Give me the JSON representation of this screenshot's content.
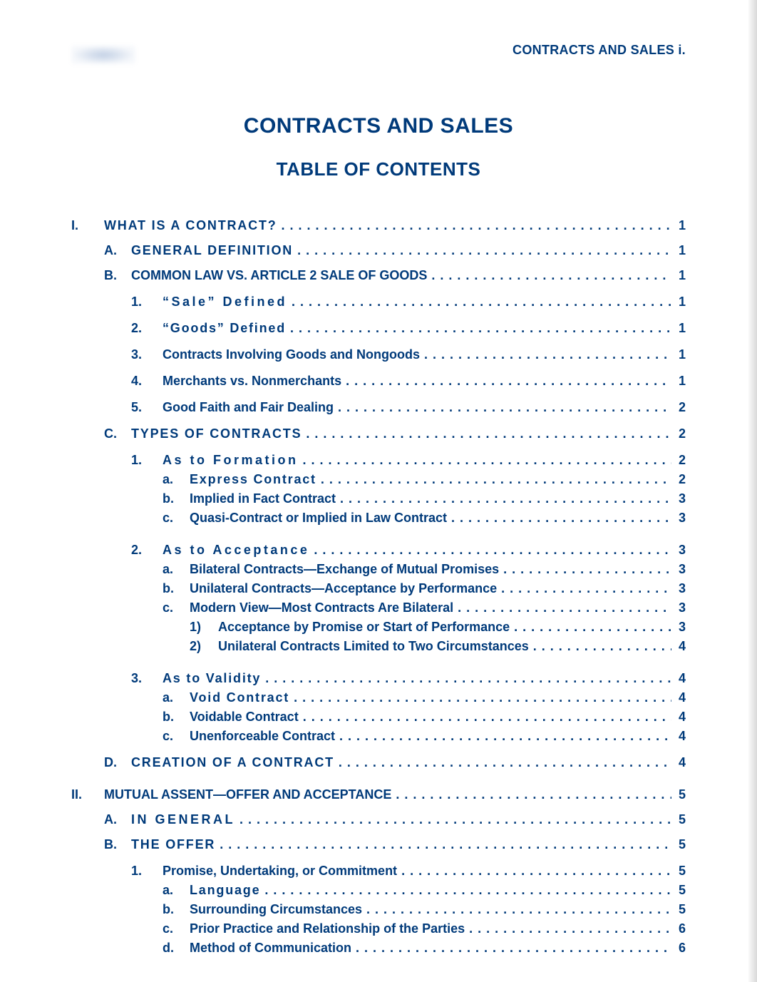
{
  "colors": {
    "primary": "#003a7a",
    "page_bg": "#ffffff"
  },
  "header": {
    "page_label": "CONTRACTS AND SALES   i."
  },
  "titles": {
    "main": "CONTRACTS AND SALES",
    "sub": "TABLE OF CONTENTS"
  },
  "toc": {
    "I": {
      "label": "I.",
      "title": "WHAT IS A CONTRACT?",
      "page": "1"
    },
    "I_A": {
      "label": "A.",
      "title": "GENERAL DEFINITION",
      "page": "1"
    },
    "I_B": {
      "label": "B.",
      "title": "COMMON LAW VS. ARTICLE 2 SALE OF GOODS",
      "page": "1"
    },
    "I_B_1": {
      "label": "1.",
      "title": "“Sale” Defined",
      "page": "1"
    },
    "I_B_2": {
      "label": "2.",
      "title": "“Goods” Defined",
      "page": "1"
    },
    "I_B_3": {
      "label": "3.",
      "title": "Contracts Involving Goods and Nongoods",
      "page": "1"
    },
    "I_B_4": {
      "label": "4.",
      "title": "Merchants vs. Nonmerchants",
      "page": "1"
    },
    "I_B_5": {
      "label": "5.",
      "title": "Good Faith and Fair Dealing",
      "page": "2"
    },
    "I_C": {
      "label": "C.",
      "title": "TYPES OF CONTRACTS",
      "page": "2"
    },
    "I_C_1": {
      "label": "1.",
      "title": "As to Formation",
      "page": "2"
    },
    "I_C_1_a": {
      "label": "a.",
      "title": "Express Contract",
      "page": "2"
    },
    "I_C_1_b": {
      "label": "b.",
      "title": "Implied in Fact Contract",
      "page": "3"
    },
    "I_C_1_c": {
      "label": "c.",
      "title": "Quasi-Contract or Implied in Law Contract",
      "page": "3"
    },
    "I_C_2": {
      "label": "2.",
      "title": "As to Acceptance",
      "page": "3"
    },
    "I_C_2_a": {
      "label": "a.",
      "title": "Bilateral Contracts—Exchange of Mutual Promises",
      "page": "3"
    },
    "I_C_2_b": {
      "label": "b.",
      "title": "Unilateral Contracts—Acceptance by Performance",
      "page": "3"
    },
    "I_C_2_c": {
      "label": "c.",
      "title": "Modern View—Most Contracts Are Bilateral",
      "page": "3"
    },
    "I_C_2_c_1": {
      "label": "1)",
      "title": "Acceptance by Promise or Start of Performance",
      "page": "3"
    },
    "I_C_2_c_2": {
      "label": "2)",
      "title": "Unilateral Contracts Limited to Two Circumstances",
      "page": "4"
    },
    "I_C_3": {
      "label": "3.",
      "title": "As to Validity",
      "page": "4"
    },
    "I_C_3_a": {
      "label": "a.",
      "title": "Void Contract",
      "page": "4"
    },
    "I_C_3_b": {
      "label": "b.",
      "title": "Voidable Contract",
      "page": "4"
    },
    "I_C_3_c": {
      "label": "c.",
      "title": "Unenforceable Contract",
      "page": "4"
    },
    "I_D": {
      "label": "D.",
      "title": "CREATION OF A CONTRACT",
      "page": "4"
    },
    "II": {
      "label": "II.",
      "title": "MUTUAL ASSENT—OFFER AND ACCEPTANCE",
      "page": "5"
    },
    "II_A": {
      "label": "A.",
      "title": "IN GENERAL",
      "page": "5"
    },
    "II_B": {
      "label": "B.",
      "title": "THE OFFER",
      "page": "5"
    },
    "II_B_1": {
      "label": "1.",
      "title": "Promise, Undertaking, or Commitment",
      "page": "5"
    },
    "II_B_1_a": {
      "label": "a.",
      "title": "Language",
      "page": "5"
    },
    "II_B_1_b": {
      "label": "b.",
      "title": "Surrounding Circumstances",
      "page": "5"
    },
    "II_B_1_c": {
      "label": "c.",
      "title": "Prior Practice and Relationship of the Parties",
      "page": "6"
    },
    "II_B_1_d": {
      "label": "d.",
      "title": "Method of Communication",
      "page": "6"
    }
  }
}
